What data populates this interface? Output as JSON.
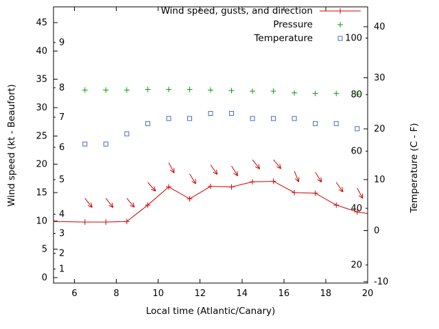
{
  "chart_data": {
    "type": "line",
    "x_label": "Local time (Atlantic/Canary)",
    "y_left_label": "Wind speed (kt - Beaufort)",
    "y_right_label": "Temperature (C - F)",
    "x_range": [
      5,
      20
    ],
    "x_ticks": [
      6,
      8,
      10,
      12,
      14,
      16,
      18,
      20
    ],
    "y_left_range": [
      0,
      45
    ],
    "y_left_ticks": [
      0,
      5,
      10,
      15,
      20,
      25,
      30,
      35,
      40,
      45
    ],
    "beaufort_scale_ticks": [
      {
        "label": "1",
        "kt": 1.5
      },
      {
        "label": "2",
        "kt": 4.3
      },
      {
        "label": "3",
        "kt": 7.8
      },
      {
        "label": "4",
        "kt": 11.2
      },
      {
        "label": "5",
        "kt": 17.3
      },
      {
        "label": "6",
        "kt": 23.0
      },
      {
        "label": "7",
        "kt": 28.3
      },
      {
        "label": "8",
        "kt": 33.5
      },
      {
        "label": "9",
        "kt": 41.5
      }
    ],
    "y_right_range": [
      -10,
      40
    ],
    "y_right_ticks": [
      -10,
      0,
      10,
      20,
      30,
      40
    ],
    "fahrenheit_scale_ticks": [
      {
        "label": "20",
        "c": -6.7
      },
      {
        "label": "40",
        "c": 4.4
      },
      {
        "label": "60",
        "c": 15.6
      },
      {
        "label": "80",
        "c": 26.7
      },
      {
        "label": "100",
        "c": 37.8
      }
    ],
    "grid": false,
    "legend_position": "top-right-inside",
    "series": [
      {
        "name": "Wind speed, gusts, and direction",
        "color": "#cc0000",
        "axis": "left",
        "marker": "plus-with-line",
        "x": [
          5,
          6.5,
          7.5,
          8.5,
          9.5,
          10.5,
          11.5,
          12.5,
          13.5,
          14.5,
          15.5,
          16.5,
          17.5,
          18.5,
          19.5,
          20
        ],
        "wind_kt": [
          9.9,
          9.8,
          9.8,
          9.9,
          12.8,
          16.0,
          13.9,
          16.1,
          16.0,
          16.9,
          17.0,
          15.0,
          14.9,
          12.8,
          11.6,
          11.3
        ],
        "arrows": [
          {
            "x": 6.5,
            "gust_kt": 14.0,
            "angle_deg": 52
          },
          {
            "x": 7.5,
            "gust_kt": 14.0,
            "angle_deg": 52
          },
          {
            "x": 8.5,
            "gust_kt": 14.0,
            "angle_deg": 50
          },
          {
            "x": 9.5,
            "gust_kt": 16.8,
            "angle_deg": 48
          },
          {
            "x": 10.5,
            "gust_kt": 20.3,
            "angle_deg": 62
          },
          {
            "x": 11.5,
            "gust_kt": 18.3,
            "angle_deg": 58
          },
          {
            "x": 12.5,
            "gust_kt": 19.9,
            "angle_deg": 55
          },
          {
            "x": 13.5,
            "gust_kt": 19.7,
            "angle_deg": 58
          },
          {
            "x": 14.5,
            "gust_kt": 20.8,
            "angle_deg": 52
          },
          {
            "x": 15.5,
            "gust_kt": 20.8,
            "angle_deg": 50
          },
          {
            "x": 16.5,
            "gust_kt": 18.8,
            "angle_deg": 68
          },
          {
            "x": 17.5,
            "gust_kt": 18.6,
            "angle_deg": 58
          },
          {
            "x": 18.5,
            "gust_kt": 16.8,
            "angle_deg": 55
          },
          {
            "x": 19.5,
            "gust_kt": 15.8,
            "angle_deg": 62
          }
        ]
      },
      {
        "name": "Pressure",
        "color": "#00a000",
        "axis": "left",
        "scale_note": "no pressure scale shown; values are plotted height on left axis",
        "marker": "plus",
        "x": [
          6.5,
          7.5,
          8.5,
          9.5,
          10.5,
          11.5,
          12.5,
          13.5,
          14.5,
          15.5,
          16.5,
          17.5,
          18.5,
          19.5
        ],
        "y_plot_kt": [
          33.1,
          33.1,
          33.1,
          33.2,
          33.2,
          33.2,
          33.1,
          33.0,
          32.9,
          32.9,
          32.6,
          32.5,
          32.5,
          32.4
        ]
      },
      {
        "name": "Temperature",
        "color": "#4169c8",
        "axis": "right",
        "marker": "open-square",
        "x": [
          6.5,
          7.5,
          8.5,
          9.5,
          10.5,
          11.5,
          12.5,
          13.5,
          14.5,
          15.5,
          16.5,
          17.5,
          18.5,
          19.5
        ],
        "temp_c": [
          17,
          17,
          19,
          21,
          22,
          22,
          23,
          23,
          22,
          22,
          22,
          21,
          21,
          20
        ]
      }
    ]
  }
}
